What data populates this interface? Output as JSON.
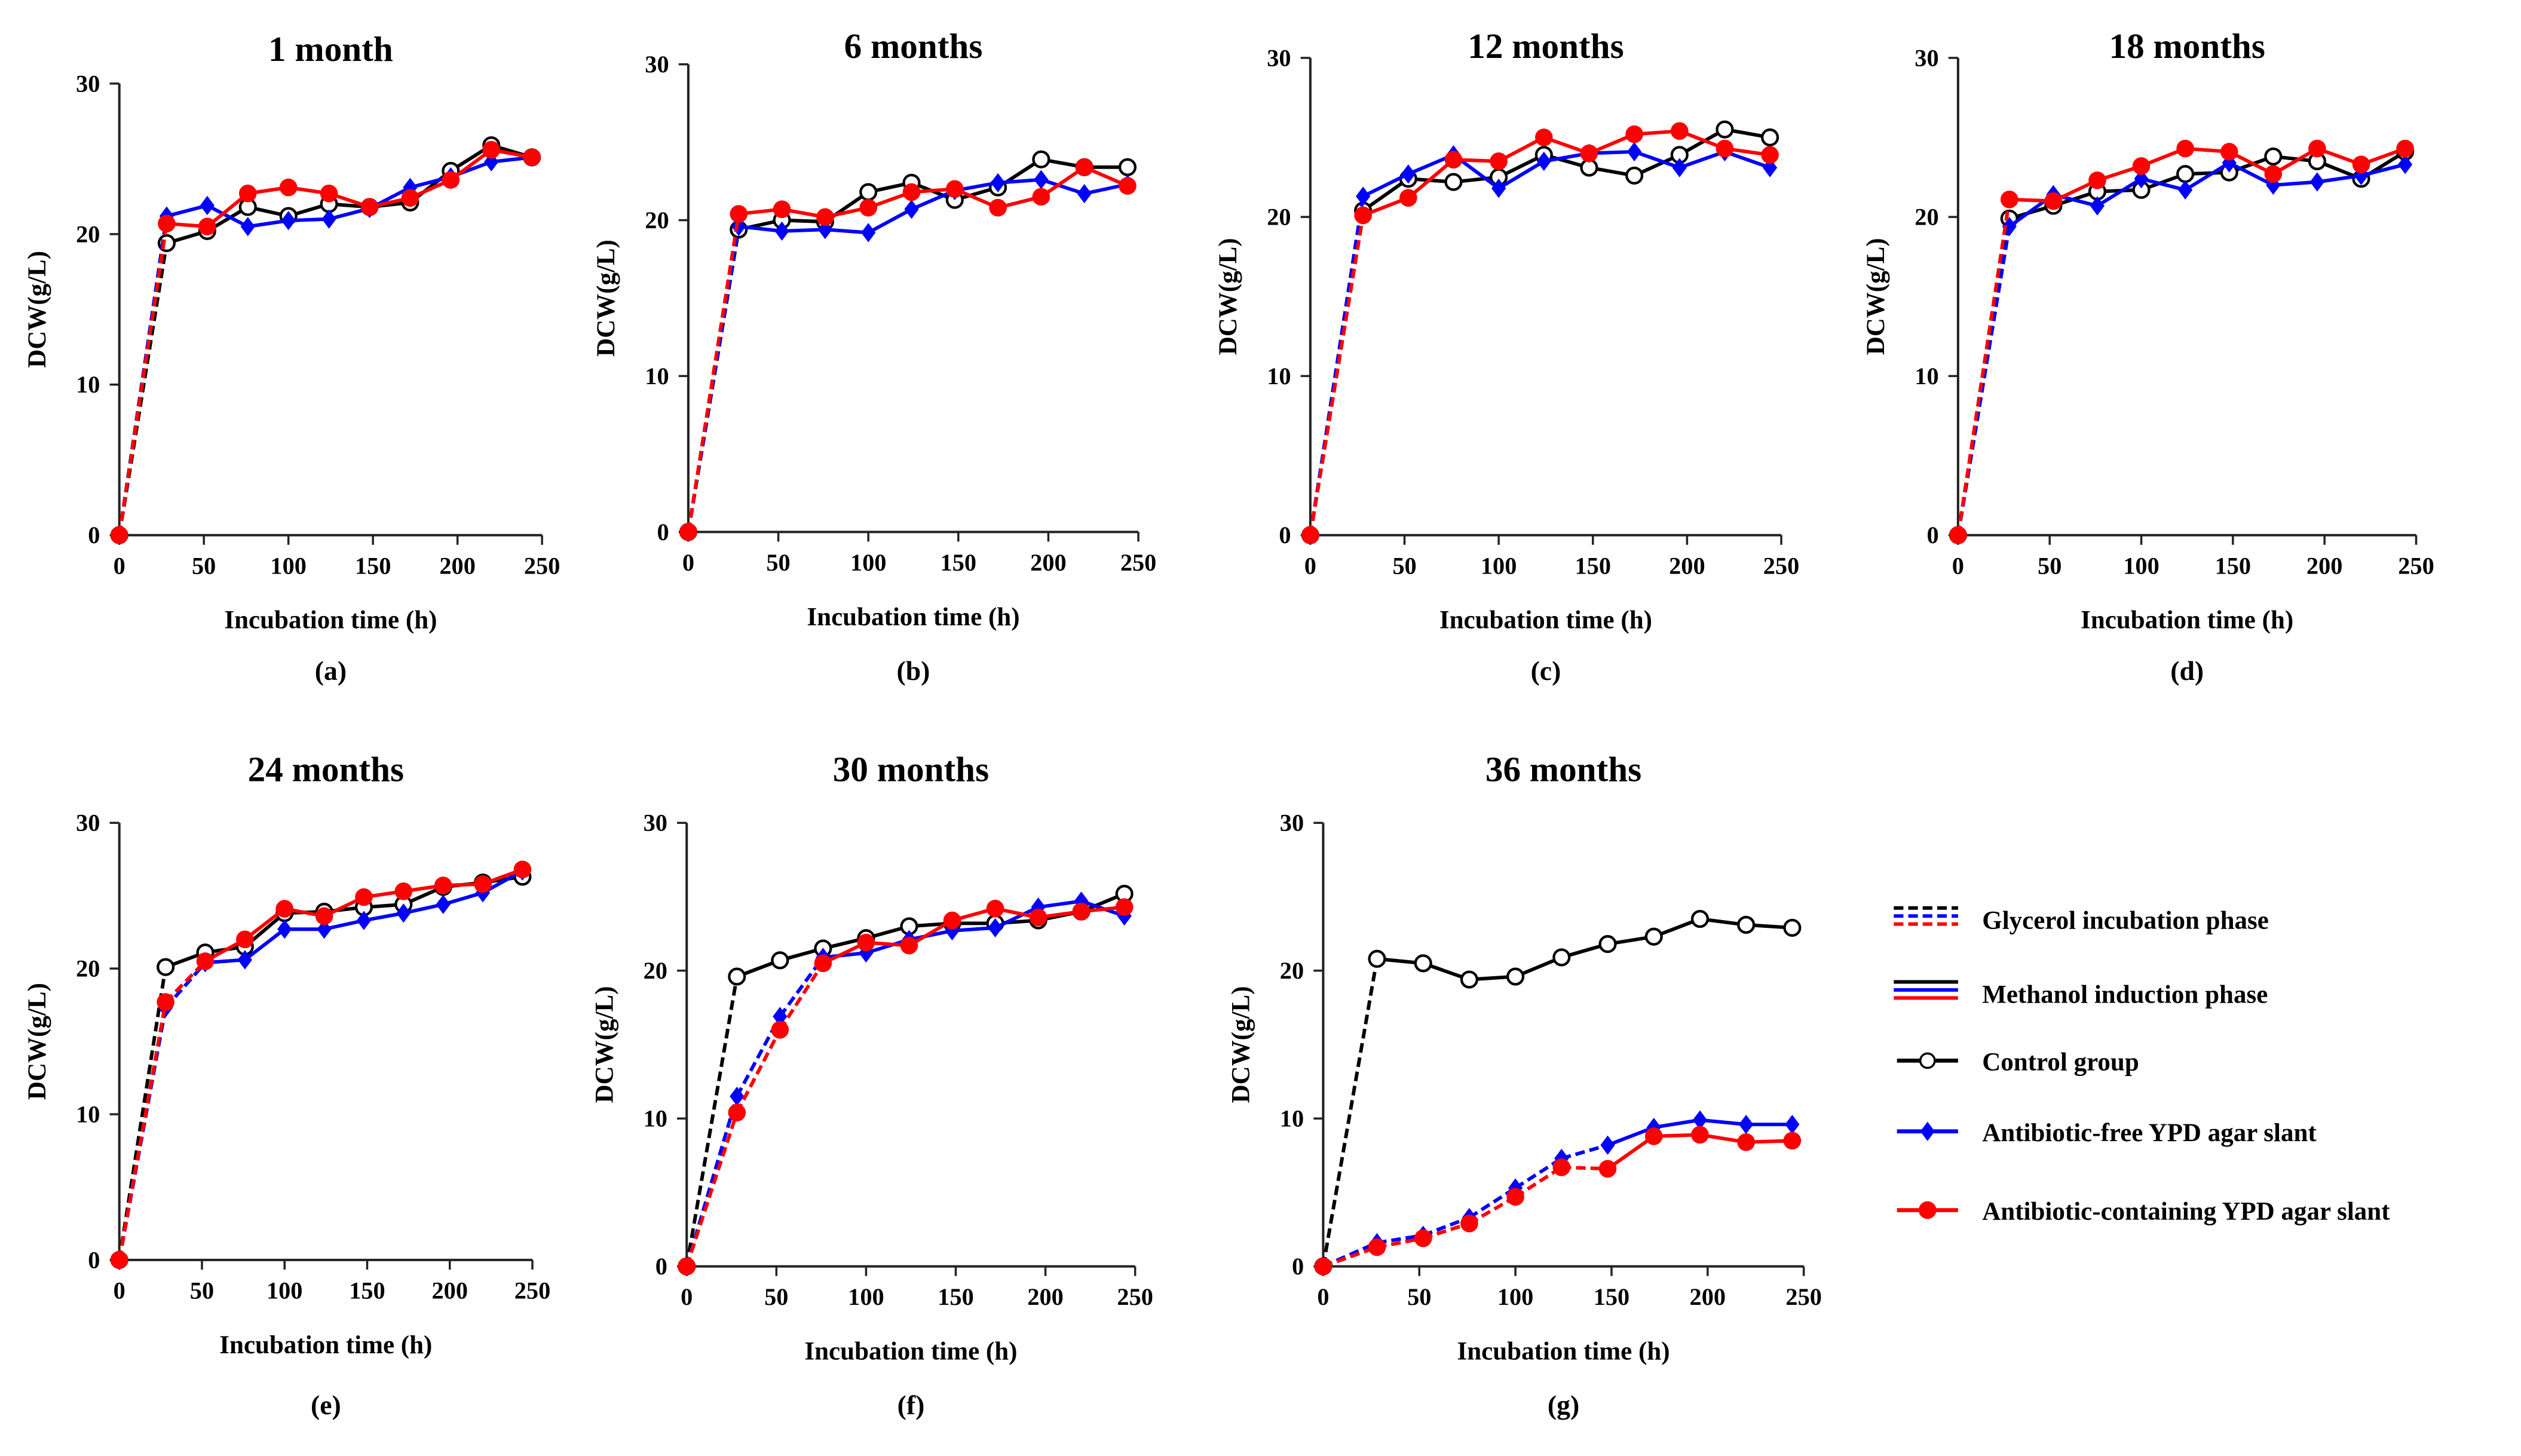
{
  "legend": {
    "items": [
      {
        "label": "Glycerol incubation phase",
        "style": "dashed"
      },
      {
        "label": "Methanol induction phase",
        "style": "solid"
      },
      {
        "label": "Control group",
        "marker": "open-circle",
        "color": "#000000"
      },
      {
        "label": "Antibiotic-free YPD agar slant",
        "marker": "diamond",
        "color": "#0000FF"
      },
      {
        "label": "Antibiotic-containing YPD agar slant",
        "marker": "filled-circle",
        "color": "#FF0000"
      }
    ]
  },
  "chart_data": [
    {
      "panel": "(a)",
      "title": "1 month",
      "type": "line",
      "xlabel": "Incubation time (h)",
      "ylabel": "DCW(g/L)",
      "xlim": [
        0,
        250
      ],
      "ylim": [
        0,
        30
      ],
      "xticks": [
        0,
        50,
        100,
        150,
        200,
        250
      ],
      "yticks": [
        0,
        10,
        20,
        30
      ],
      "x": [
        0,
        28,
        52,
        76,
        100,
        124,
        148,
        172,
        196,
        220,
        244
      ],
      "series": [
        {
          "name": "Control group",
          "color": "#000000",
          "glycerol_until": 28,
          "values": [
            0,
            19.4,
            20.2,
            21.8,
            21.2,
            22.0,
            21.8,
            22.1,
            24.2,
            25.9,
            25.1
          ]
        },
        {
          "name": "Antibiotic-free YPD agar slant",
          "color": "#0000FF",
          "glycerol_until": 28,
          "values": [
            0,
            21.2,
            21.9,
            20.5,
            20.9,
            21.0,
            21.7,
            23.1,
            23.8,
            24.8,
            25.1
          ]
        },
        {
          "name": "Antibiotic-containing YPD agar slant",
          "color": "#FF0000",
          "glycerol_until": 28,
          "values": [
            0,
            20.7,
            20.5,
            22.7,
            23.1,
            22.7,
            21.8,
            22.4,
            23.6,
            25.6,
            25.1
          ]
        }
      ]
    },
    {
      "panel": "(b)",
      "title": "6 months",
      "type": "line",
      "xlabel": "Incubation time (h)",
      "ylabel": "DCW(g/L)",
      "xlim": [
        0,
        250
      ],
      "ylim": [
        0,
        30
      ],
      "xticks": [
        0,
        50,
        100,
        150,
        200,
        250
      ],
      "yticks": [
        0,
        10,
        20,
        30
      ],
      "x": [
        0,
        28,
        52,
        76,
        100,
        124,
        148,
        172,
        196,
        220,
        244
      ],
      "series": [
        {
          "name": "Control group",
          "color": "#000000",
          "glycerol_until": 28,
          "values": [
            0,
            19.4,
            20.0,
            19.9,
            21.8,
            22.4,
            21.3,
            22.1,
            23.9,
            23.4,
            23.4
          ]
        },
        {
          "name": "Antibiotic-free YPD agar slant",
          "color": "#0000FF",
          "glycerol_until": 28,
          "values": [
            0,
            19.6,
            19.3,
            19.4,
            19.2,
            20.7,
            21.9,
            22.4,
            22.6,
            21.7,
            22.3
          ]
        },
        {
          "name": "Antibiotic-containing YPD agar slant",
          "color": "#FF0000",
          "glycerol_until": 28,
          "values": [
            0,
            20.4,
            20.7,
            20.2,
            20.8,
            21.8,
            22.0,
            20.8,
            21.5,
            23.4,
            22.2
          ]
        }
      ]
    },
    {
      "panel": "(c)",
      "title": "12 months",
      "type": "line",
      "xlabel": "Incubation time (h)",
      "ylabel": "DCW(g/L)",
      "xlim": [
        0,
        250
      ],
      "ylim": [
        0,
        30
      ],
      "xticks": [
        0,
        50,
        100,
        150,
        200,
        250
      ],
      "yticks": [
        0,
        10,
        20,
        30
      ],
      "x": [
        0,
        28,
        52,
        76,
        100,
        124,
        148,
        172,
        196,
        220,
        244
      ],
      "series": [
        {
          "name": "Control group",
          "color": "#000000",
          "glycerol_until": 28,
          "values": [
            0,
            20.4,
            22.4,
            22.2,
            22.5,
            23.9,
            23.1,
            22.6,
            23.9,
            25.5,
            25.0
          ]
        },
        {
          "name": "Antibiotic-free YPD agar slant",
          "color": "#0000FF",
          "glycerol_until": 28,
          "values": [
            0,
            21.3,
            22.7,
            23.9,
            21.8,
            23.5,
            24.0,
            24.1,
            23.1,
            24.1,
            23.1
          ]
        },
        {
          "name": "Antibiotic-containing YPD agar slant",
          "color": "#FF0000",
          "glycerol_until": 28,
          "values": [
            0,
            20.1,
            21.2,
            23.6,
            23.5,
            25.0,
            24.0,
            25.2,
            25.4,
            24.3,
            23.9
          ]
        }
      ]
    },
    {
      "panel": "(d)",
      "title": "18 months",
      "type": "line",
      "xlabel": "Incubation time (h)",
      "ylabel": "DCW(g/L)",
      "xlim": [
        0,
        250
      ],
      "ylim": [
        0,
        30
      ],
      "xticks": [
        0,
        50,
        100,
        150,
        200,
        250
      ],
      "yticks": [
        0,
        10,
        20,
        30
      ],
      "x": [
        0,
        28,
        52,
        76,
        100,
        124,
        148,
        172,
        196,
        220,
        244
      ],
      "series": [
        {
          "name": "Control group",
          "color": "#000000",
          "glycerol_until": 28,
          "values": [
            0,
            19.9,
            20.7,
            21.6,
            21.7,
            22.7,
            22.8,
            23.8,
            23.5,
            22.4,
            24.1
          ]
        },
        {
          "name": "Antibiotic-free YPD agar slant",
          "color": "#0000FF",
          "glycerol_until": 28,
          "values": [
            0,
            19.4,
            21.4,
            20.7,
            22.4,
            21.7,
            23.4,
            22.0,
            22.2,
            22.6,
            23.3
          ]
        },
        {
          "name": "Antibiotic-containing YPD agar slant",
          "color": "#FF0000",
          "glycerol_until": 28,
          "values": [
            0,
            21.1,
            21.0,
            22.3,
            23.2,
            24.3,
            24.1,
            22.7,
            24.3,
            23.3,
            24.3
          ]
        }
      ]
    },
    {
      "panel": "(e)",
      "title": "24 months",
      "type": "line",
      "xlabel": "Incubation time (h)",
      "ylabel": "DCW(g/L)",
      "xlim": [
        0,
        250
      ],
      "ylim": [
        0,
        30
      ],
      "xticks": [
        0,
        50,
        100,
        150,
        200,
        250
      ],
      "yticks": [
        0,
        10,
        20,
        30
      ],
      "x": [
        0,
        28,
        52,
        76,
        100,
        124,
        148,
        172,
        196,
        220,
        244
      ],
      "series": [
        {
          "name": "Control group",
          "color": "#000000",
          "glycerol_until": 28,
          "values": [
            0,
            20.1,
            21.1,
            21.5,
            23.8,
            23.9,
            24.2,
            24.4,
            25.6,
            25.9,
            26.3
          ]
        },
        {
          "name": "Antibiotic-free YPD agar slant",
          "color": "#0000FF",
          "glycerol_until": 52,
          "values": [
            0,
            17.3,
            20.4,
            20.6,
            22.7,
            22.7,
            23.3,
            23.8,
            24.4,
            25.2,
            26.7
          ]
        },
        {
          "name": "Antibiotic-containing YPD agar slant",
          "color": "#FF0000",
          "glycerol_until": 52,
          "values": [
            0,
            17.7,
            20.5,
            22.0,
            24.1,
            23.6,
            24.9,
            25.3,
            25.7,
            25.8,
            26.8
          ]
        }
      ]
    },
    {
      "panel": "(f)",
      "title": "30 months",
      "type": "line",
      "xlabel": "Incubation time (h)",
      "ylabel": "DCW(g/L)",
      "xlim": [
        0,
        250
      ],
      "ylim": [
        0,
        30
      ],
      "xticks": [
        0,
        50,
        100,
        150,
        200,
        250
      ],
      "yticks": [
        0,
        10,
        20,
        30
      ],
      "x": [
        0,
        28,
        52,
        76,
        100,
        124,
        148,
        172,
        196,
        220,
        244
      ],
      "series": [
        {
          "name": "Control group",
          "color": "#000000",
          "glycerol_until": 28,
          "values": [
            0,
            19.6,
            20.7,
            21.5,
            22.2,
            23.0,
            23.2,
            23.2,
            23.4,
            24.0,
            25.2
          ]
        },
        {
          "name": "Antibiotic-free YPD agar slant",
          "color": "#0000FF",
          "glycerol_until": 76,
          "values": [
            0,
            11.5,
            16.9,
            20.9,
            21.2,
            22.1,
            22.7,
            22.9,
            24.3,
            24.7,
            23.7
          ]
        },
        {
          "name": "Antibiotic-containing YPD agar slant",
          "color": "#FF0000",
          "glycerol_until": 76,
          "values": [
            0,
            10.4,
            16.0,
            20.5,
            21.9,
            21.7,
            23.4,
            24.2,
            23.6,
            24.0,
            24.3
          ]
        }
      ]
    },
    {
      "panel": "(g)",
      "title": "36 months",
      "type": "line",
      "xlabel": "Incubation time (h)",
      "ylabel": "DCW(g/L)",
      "xlim": [
        0,
        250
      ],
      "ylim": [
        0,
        30
      ],
      "xticks": [
        0,
        50,
        100,
        150,
        200,
        250
      ],
      "yticks": [
        0,
        10,
        20,
        30
      ],
      "x": [
        0,
        28,
        52,
        76,
        100,
        124,
        148,
        172,
        196,
        220,
        244
      ],
      "series": [
        {
          "name": "Control group",
          "color": "#000000",
          "glycerol_until": 28,
          "values": [
            0,
            20.8,
            20.5,
            19.4,
            19.6,
            20.9,
            21.8,
            22.3,
            23.5,
            23.1,
            22.9
          ]
        },
        {
          "name": "Antibiotic-free YPD agar slant",
          "color": "#0000FF",
          "glycerol_until": 148,
          "values": [
            0,
            1.6,
            2.1,
            3.3,
            5.3,
            7.3,
            8.2,
            9.4,
            9.9,
            9.6,
            9.6
          ]
        },
        {
          "name": "Antibiotic-containing YPD agar slant",
          "color": "#FF0000",
          "glycerol_until": 148,
          "values": [
            0,
            1.3,
            1.9,
            2.9,
            4.7,
            6.7,
            6.6,
            8.8,
            8.9,
            8.4,
            8.5
          ]
        }
      ]
    }
  ]
}
